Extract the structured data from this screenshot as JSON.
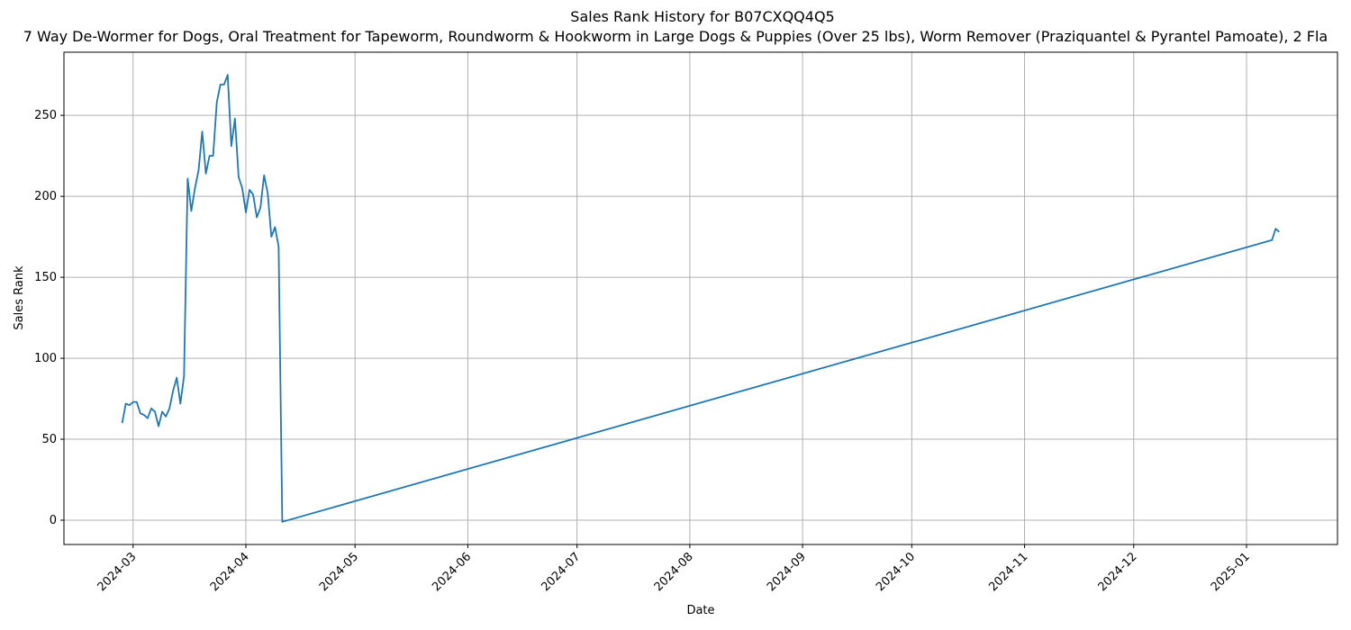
{
  "chart_data": {
    "type": "line",
    "title": "Sales Rank History for B07CXQQ4Q5",
    "subtitle": "7 Way De-Wormer for Dogs, Oral Treatment for Tapeworm, Roundworm & Hookworm in Large Dogs & Puppies (Over 25 lbs), Worm Remover (Praziquantel & Pyrantel Pamoate), 2 Fla",
    "x_label": "Date",
    "y_label": "Sales Rank",
    "x": [
      "2024-02-27",
      "2024-02-28",
      "2024-02-29",
      "2024-03-01",
      "2024-03-02",
      "2024-03-03",
      "2024-03-04",
      "2024-03-05",
      "2024-03-06",
      "2024-03-07",
      "2024-03-08",
      "2024-03-09",
      "2024-03-10",
      "2024-03-11",
      "2024-03-12",
      "2024-03-13",
      "2024-03-14",
      "2024-03-15",
      "2024-03-16",
      "2024-03-17",
      "2024-03-18",
      "2024-03-19",
      "2024-03-20",
      "2024-03-21",
      "2024-03-22",
      "2024-03-23",
      "2024-03-24",
      "2024-03-25",
      "2024-03-26",
      "2024-03-27",
      "2024-03-28",
      "2024-03-29",
      "2024-03-30",
      "2024-03-31",
      "2024-04-01",
      "2024-04-02",
      "2024-04-03",
      "2024-04-04",
      "2024-04-05",
      "2024-04-06",
      "2024-04-07",
      "2024-04-08",
      "2024-04-09",
      "2024-04-10",
      "2024-04-11",
      "2025-01-08",
      "2025-01-09",
      "2025-01-10"
    ],
    "values": [
      60,
      72,
      71,
      73,
      73,
      66,
      65,
      63,
      69,
      67,
      58,
      67,
      64,
      69,
      80,
      88,
      72,
      89,
      211,
      191,
      205,
      216,
      240,
      214,
      225,
      225,
      258,
      269,
      269,
      275,
      231,
      248,
      212,
      205,
      190,
      204,
      201,
      187,
      193,
      213,
      202,
      175,
      181,
      169,
      -1,
      173,
      180,
      178
    ],
    "color": "#1f77b4",
    "xlim": [
      "2024-02-11",
      "2025-01-26"
    ],
    "xticks": [
      "2024-03",
      "2024-04",
      "2024-05",
      "2024-06",
      "2024-07",
      "2024-08",
      "2024-09",
      "2024-10",
      "2024-11",
      "2024-12",
      "2025-01"
    ],
    "ylim": [
      -15,
      289
    ],
    "yticks": [
      0,
      50,
      100,
      150,
      200,
      250
    ],
    "grid": true
  }
}
